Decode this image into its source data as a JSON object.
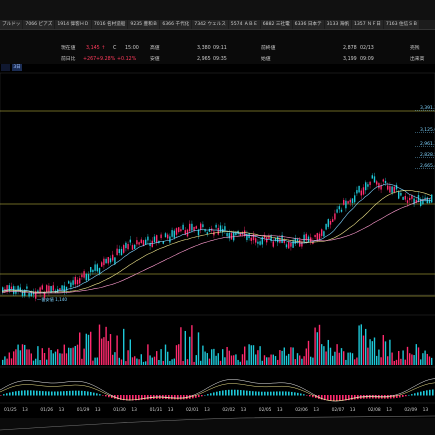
{
  "tabs": [
    "ブルドッ",
    "7066 ピアズ",
    "1914 偉客ＨＤ",
    "7016 名村造船",
    "9235 豊和Ｂ",
    "6366 千代化",
    "7342 ウェルス",
    "5574 ＡＢＥ",
    "6882 三社電",
    "6336 日本テ",
    "3133 海帆",
    "1357 ＮＦ日",
    "7163 住信ＳＢ"
  ],
  "quote": {
    "price_label": "現在値",
    "price": "3,145 ↑",
    "price_flag": "C",
    "price_time": "15:00",
    "change_label": "前日比",
    "change": "+267",
    "change_pct": "+9.28%",
    "change_pct2": "+0.12%",
    "high_label": "高値",
    "high": "3,380",
    "high_time": "09:11",
    "low_label": "安値",
    "low": "2,965",
    "low_time": "09:35",
    "prev_label": "前終値",
    "prev": "2,878",
    "prev_date": "02/13",
    "open_label": "始値",
    "open": "3,199",
    "open_time": "09:09",
    "sell_label": "売残",
    "buy_label": "出来高"
  },
  "period_button": "3日",
  "price_tags": [
    "3,391.3",
    "3,125.6",
    "2,961.3",
    "2,828.5",
    "2,665.4"
  ],
  "annotation": "一番安値 1,140",
  "xaxis": [
    "01/25",
    "13",
    "01/26",
    "13",
    "01/29",
    "13",
    "01/30",
    "13",
    "01/31",
    "13",
    "02/01",
    "13",
    "02/02",
    "13",
    "02/05",
    "13",
    "02/06",
    "13",
    "02/07",
    "13",
    "02/08",
    "13",
    "02/09",
    "13"
  ],
  "colors": {
    "up": "#ff2a6d",
    "down": "#1ec8d8",
    "ma1": "#f0e68c",
    "ma2": "#7fd4ff",
    "ma3": "#ff9cd0",
    "hline": "#d9d24a"
  }
}
